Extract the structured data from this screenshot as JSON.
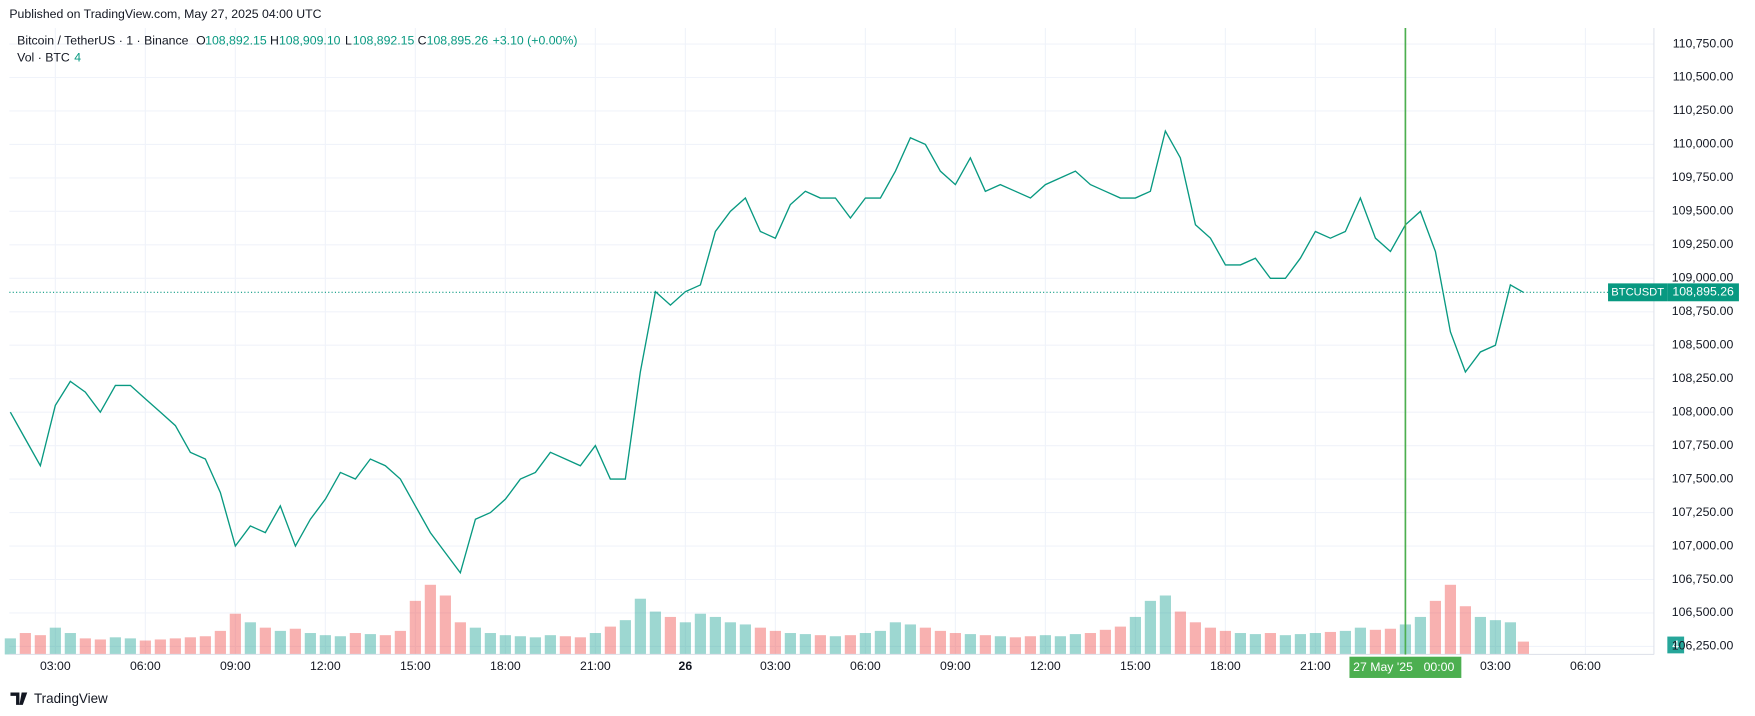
{
  "header": {
    "published": "Published on TradingView.com, May 27, 2025 04:00 UTC"
  },
  "legend": {
    "symbol": "Bitcoin / TetherUS · 1 · Binance",
    "open": {
      "key": "O",
      "value": "108,892.15"
    },
    "high": {
      "key": "H",
      "value": "108,909.10"
    },
    "low": {
      "key": "L",
      "value": "108,892.15"
    },
    "close": {
      "key": "C",
      "value": "108,895.26"
    },
    "change": "+3.10 (+0.00%)",
    "volume": {
      "key": "Vol · BTC",
      "value": "4"
    }
  },
  "footer": {
    "brand": "TradingView"
  },
  "chart_data": {
    "type": "line",
    "color": "#089981",
    "up_color": "#26a69a",
    "down_color": "#ef5350",
    "grid": true,
    "x": [
      "2025-05-25T01:30",
      "2025-05-25T02:00",
      "2025-05-25T02:30",
      "2025-05-25T03:00",
      "2025-05-25T03:30",
      "2025-05-25T04:00",
      "2025-05-25T04:30",
      "2025-05-25T05:00",
      "2025-05-25T05:30",
      "2025-05-25T06:00",
      "2025-05-25T06:30",
      "2025-05-25T07:00",
      "2025-05-25T07:30",
      "2025-05-25T08:00",
      "2025-05-25T08:30",
      "2025-05-25T09:00",
      "2025-05-25T09:30",
      "2025-05-25T10:00",
      "2025-05-25T10:30",
      "2025-05-25T11:00",
      "2025-05-25T11:30",
      "2025-05-25T12:00",
      "2025-05-25T12:30",
      "2025-05-25T13:00",
      "2025-05-25T13:30",
      "2025-05-25T14:00",
      "2025-05-25T14:30",
      "2025-05-25T15:00",
      "2025-05-25T15:30",
      "2025-05-25T16:00",
      "2025-05-25T16:30",
      "2025-05-25T17:00",
      "2025-05-25T17:30",
      "2025-05-25T18:00",
      "2025-05-25T18:30",
      "2025-05-25T19:00",
      "2025-05-25T19:30",
      "2025-05-25T20:00",
      "2025-05-25T20:30",
      "2025-05-25T21:00",
      "2025-05-25T21:30",
      "2025-05-25T22:00",
      "2025-05-25T22:30",
      "2025-05-25T23:00",
      "2025-05-25T23:30",
      "2025-05-26T00:00",
      "2025-05-26T00:30",
      "2025-05-26T01:00",
      "2025-05-26T01:30",
      "2025-05-26T02:00",
      "2025-05-26T02:30",
      "2025-05-26T03:00",
      "2025-05-26T03:30",
      "2025-05-26T04:00",
      "2025-05-26T04:30",
      "2025-05-26T05:00",
      "2025-05-26T05:30",
      "2025-05-26T06:00",
      "2025-05-26T06:30",
      "2025-05-26T07:00",
      "2025-05-26T07:30",
      "2025-05-26T08:00",
      "2025-05-26T08:30",
      "2025-05-26T09:00",
      "2025-05-26T09:30",
      "2025-05-26T10:00",
      "2025-05-26T10:30",
      "2025-05-26T11:00",
      "2025-05-26T11:30",
      "2025-05-26T12:00",
      "2025-05-26T12:30",
      "2025-05-26T13:00",
      "2025-05-26T13:30",
      "2025-05-26T14:00",
      "2025-05-26T14:30",
      "2025-05-26T15:00",
      "2025-05-26T15:30",
      "2025-05-26T16:00",
      "2025-05-26T16:30",
      "2025-05-26T17:00",
      "2025-05-26T17:30",
      "2025-05-26T18:00",
      "2025-05-26T18:30",
      "2025-05-26T19:00",
      "2025-05-26T19:30",
      "2025-05-26T20:00",
      "2025-05-26T20:30",
      "2025-05-26T21:00",
      "2025-05-26T21:30",
      "2025-05-26T22:00",
      "2025-05-26T22:30",
      "2025-05-26T23:00",
      "2025-05-26T23:30",
      "2025-05-27T00:00",
      "2025-05-27T00:30",
      "2025-05-27T01:00",
      "2025-05-27T01:30",
      "2025-05-27T02:00",
      "2025-05-27T02:30",
      "2025-05-27T03:00",
      "2025-05-27T03:30",
      "2025-05-27T03:56"
    ],
    "close": [
      108000,
      107800,
      107600,
      108050,
      108230,
      108150,
      108000,
      108200,
      108200,
      108100,
      108000,
      107900,
      107700,
      107650,
      107400,
      107000,
      107150,
      107100,
      107300,
      107000,
      107200,
      107350,
      107550,
      107500,
      107650,
      107600,
      107500,
      107300,
      107100,
      106950,
      106800,
      107200,
      107250,
      107350,
      107500,
      107550,
      107700,
      107650,
      107600,
      107750,
      107500,
      107500,
      108300,
      108900,
      108800,
      108900,
      108950,
      109350,
      109500,
      109600,
      109350,
      109300,
      109550,
      109650,
      109600,
      109600,
      109450,
      109600,
      109600,
      109800,
      110050,
      110000,
      109800,
      109700,
      109900,
      109650,
      109700,
      109650,
      109600,
      109700,
      109750,
      109800,
      109700,
      109650,
      109600,
      109600,
      109650,
      110100,
      109900,
      109400,
      109300,
      109100,
      109100,
      109150,
      109000,
      109000,
      109150,
      109350,
      109300,
      109350,
      109600,
      109300,
      109200,
      109400,
      109500,
      109200,
      108600,
      108300,
      108450,
      108500,
      108950,
      108895.26
    ],
    "volume": [
      150,
      200,
      180,
      250,
      200,
      150,
      140,
      160,
      150,
      130,
      140,
      150,
      160,
      170,
      220,
      380,
      300,
      250,
      220,
      240,
      200,
      180,
      170,
      200,
      190,
      180,
      220,
      500,
      650,
      550,
      300,
      250,
      200,
      180,
      170,
      160,
      180,
      170,
      160,
      200,
      260,
      320,
      520,
      400,
      350,
      300,
      380,
      350,
      300,
      280,
      250,
      220,
      200,
      190,
      180,
      170,
      180,
      200,
      220,
      300,
      280,
      250,
      220,
      200,
      190,
      180,
      170,
      160,
      170,
      180,
      170,
      190,
      200,
      230,
      260,
      350,
      500,
      550,
      400,
      300,
      250,
      220,
      200,
      190,
      200,
      180,
      190,
      200,
      210,
      220,
      250,
      230,
      240,
      280,
      350,
      500,
      650,
      450,
      350,
      320,
      300,
      120
    ],
    "vlim": [
      0,
      1200
    ],
    "xlim": [
      "2025-05-25T01:28",
      "2025-05-27T08:17"
    ],
    "ylim": [
      106190,
      110870
    ],
    "xticks": [
      {
        "value": "2025-05-25T03:00",
        "label": "03:00"
      },
      {
        "value": "2025-05-25T06:00",
        "label": "06:00"
      },
      {
        "value": "2025-05-25T09:00",
        "label": "09:00"
      },
      {
        "value": "2025-05-25T12:00",
        "label": "12:00"
      },
      {
        "value": "2025-05-25T15:00",
        "label": "15:00"
      },
      {
        "value": "2025-05-25T18:00",
        "label": "18:00"
      },
      {
        "value": "2025-05-25T21:00",
        "label": "21:00"
      },
      {
        "value": "2025-05-26T00:00",
        "label": "26"
      },
      {
        "value": "2025-05-26T03:00",
        "label": "03:00"
      },
      {
        "value": "2025-05-26T06:00",
        "label": "06:00"
      },
      {
        "value": "2025-05-26T09:00",
        "label": "09:00"
      },
      {
        "value": "2025-05-26T12:00",
        "label": "12:00"
      },
      {
        "value": "2025-05-26T15:00",
        "label": "15:00"
      },
      {
        "value": "2025-05-26T18:00",
        "label": "18:00"
      },
      {
        "value": "2025-05-26T21:00",
        "label": "21:00"
      },
      {
        "value": "2025-05-27T03:00",
        "label": "03:00"
      },
      {
        "value": "2025-05-27T06:00",
        "label": "06:00"
      }
    ],
    "yticks": [
      {
        "value": 106250,
        "label": "106,250.00"
      },
      {
        "value": 106500,
        "label": "106,500.00"
      },
      {
        "value": 106750,
        "label": "106,750.00"
      },
      {
        "value": 107000,
        "label": "107,000.00"
      },
      {
        "value": 107250,
        "label": "107,250.00"
      },
      {
        "value": 107500,
        "label": "107,500.00"
      },
      {
        "value": 107750,
        "label": "107,750.00"
      },
      {
        "value": 108000,
        "label": "108,000.00"
      },
      {
        "value": 108250,
        "label": "108,250.00"
      },
      {
        "value": 108500,
        "label": "108,500.00"
      },
      {
        "value": 108750,
        "label": "108,750.00"
      },
      {
        "value": 109000,
        "label": "109,000.00"
      },
      {
        "value": 109250,
        "label": "109,250.00"
      },
      {
        "value": 109500,
        "label": "109,500.00"
      },
      {
        "value": 109750,
        "label": "109,750.00"
      },
      {
        "value": 110000,
        "label": "110,000.00"
      },
      {
        "value": 110250,
        "label": "110,250.00"
      },
      {
        "value": 110500,
        "label": "110,500.00"
      },
      {
        "value": 110750,
        "label": "110,750.00"
      }
    ],
    "last_price": {
      "symbol": "BTCUSDT",
      "value": 108895.26,
      "label": "108,895.26"
    },
    "crosshair": {
      "value": "2025-05-27T00:00",
      "date": "27 May '25",
      "time": "00:00",
      "color": "#4caf50"
    }
  }
}
